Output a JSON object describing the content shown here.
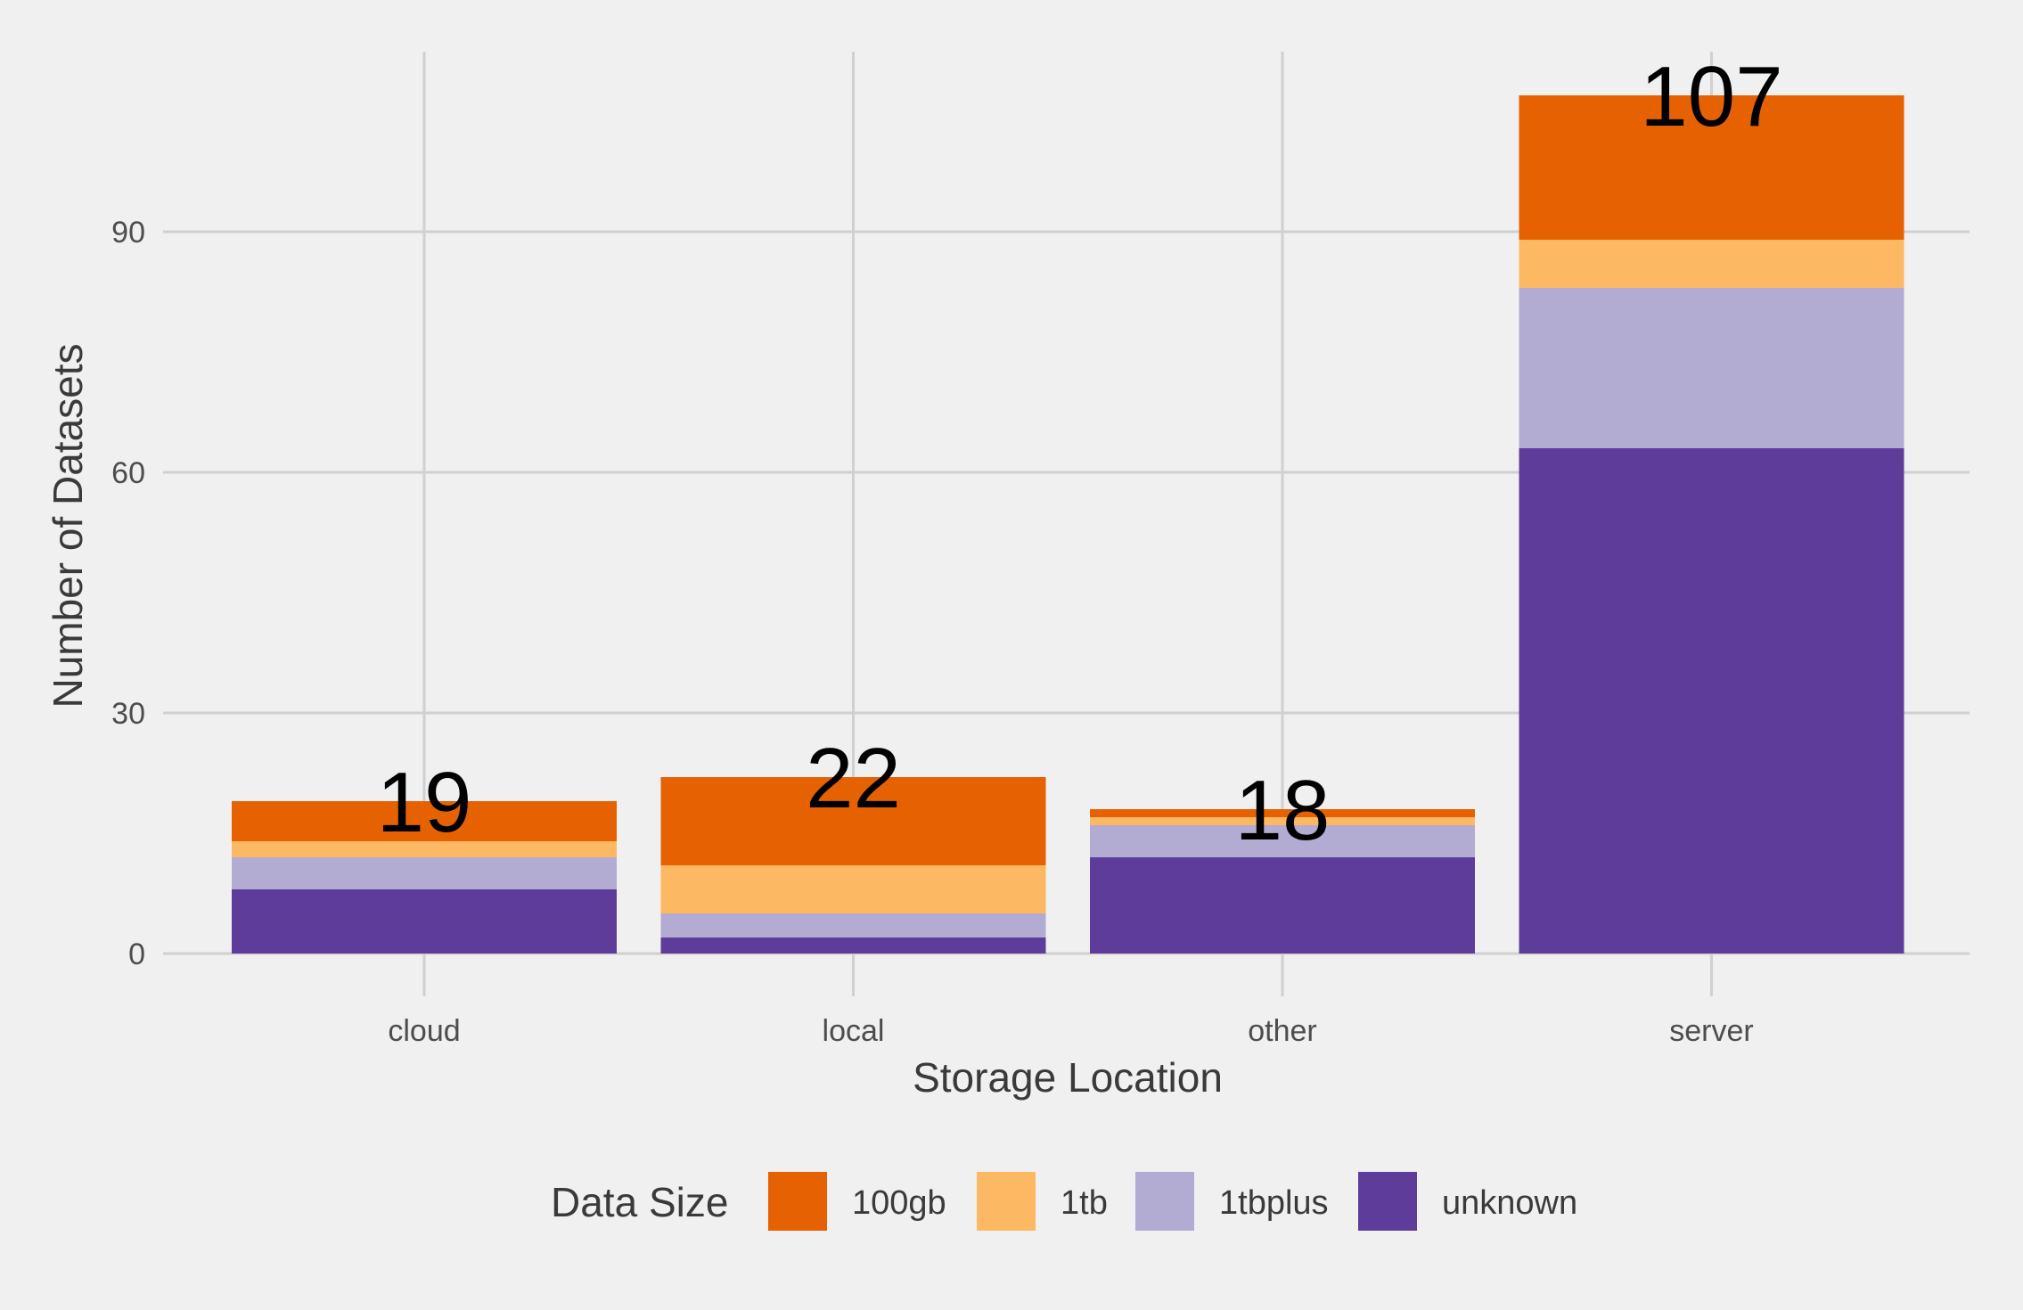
{
  "chart_data": {
    "type": "bar",
    "stacked": true,
    "categories": [
      "cloud",
      "local",
      "other",
      "server"
    ],
    "series": [
      {
        "name": "unknown",
        "color": "#5e3c99",
        "values": [
          8,
          2,
          12,
          63
        ]
      },
      {
        "name": "1tbplus",
        "color": "#b2abd2",
        "values": [
          4,
          3,
          4,
          20
        ]
      },
      {
        "name": "1tb",
        "color": "#fdb863",
        "values": [
          2,
          6,
          1,
          6
        ]
      },
      {
        "name": "100gb",
        "color": "#e66101",
        "values": [
          5,
          11,
          1,
          18
        ]
      }
    ],
    "totals": [
      "19",
      "22",
      "18",
      "107"
    ],
    "xlabel": "Storage Location",
    "ylabel": "Number of Datasets",
    "yticks": [
      0,
      30,
      60,
      90
    ],
    "ylim": [
      0,
      107
    ],
    "grid": true,
    "legend": {
      "title": "Data Size",
      "position": "bottom",
      "order": [
        "100gb",
        "1tb",
        "1tbplus",
        "unknown"
      ]
    }
  }
}
